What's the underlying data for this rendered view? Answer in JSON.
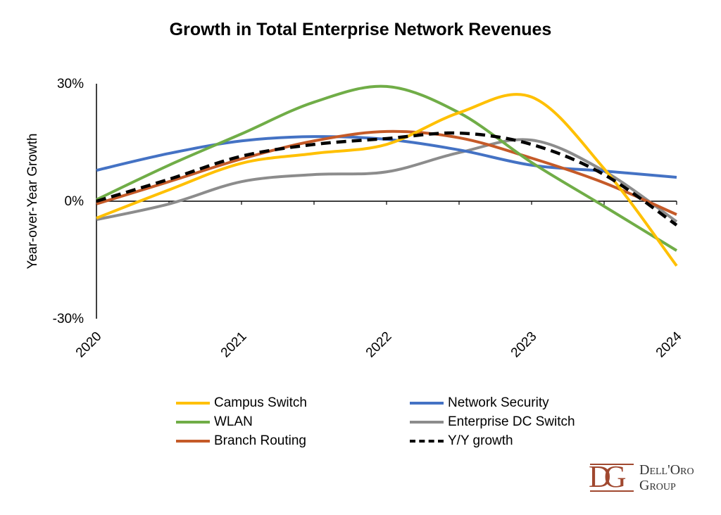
{
  "chart_data": {
    "type": "line",
    "title": "Growth in Total Enterprise Network Revenues",
    "xlabel": "",
    "ylabel": "Year-over-Year Growth",
    "x": [
      2020,
      2020.5,
      2021,
      2021.5,
      2022,
      2022.5,
      2023,
      2023.5,
      2024
    ],
    "x_tick_labels": [
      "2020",
      "2021",
      "2022",
      "2023",
      "2024"
    ],
    "y_tick_labels": [
      "30%",
      "0%",
      "-30%"
    ],
    "ylim": [
      -30,
      30
    ],
    "y_unit": "%",
    "grid": false,
    "smooth": true,
    "legend_placement": "bottom",
    "series": [
      {
        "name": "Campus Switch",
        "color": "#ffc000",
        "dash": false,
        "values": [
          -4.3,
          2.9,
          9.7,
          12.2,
          14.5,
          22.6,
          26.6,
          8.3,
          -16.5
        ]
      },
      {
        "name": "Network Security",
        "color": "#4472c4",
        "dash": false,
        "values": [
          7.9,
          12.2,
          15.4,
          16.5,
          15.8,
          13.1,
          9.2,
          7.7,
          6.1
        ]
      },
      {
        "name": "WLAN",
        "color": "#70ad47",
        "dash": false,
        "values": [
          0.4,
          9.2,
          17.2,
          25.3,
          29.3,
          22.6,
          9.9,
          -1.3,
          -12.6
        ]
      },
      {
        "name": "Enterprise DC Switch",
        "color": "#8c8c8c",
        "dash": false,
        "values": [
          -4.7,
          -0.7,
          5.0,
          6.8,
          7.5,
          12.4,
          15.6,
          7.7,
          -5.2
        ]
      },
      {
        "name": "Branch Routing",
        "color": "#c55a28",
        "dash": false,
        "values": [
          -0.7,
          5.0,
          10.8,
          15.4,
          17.8,
          16.2,
          11.0,
          4.7,
          -3.4
        ]
      },
      {
        "name": "Y/Y growth",
        "color": "#000000",
        "dash": true,
        "values": [
          0.0,
          5.6,
          11.5,
          14.5,
          16.0,
          17.4,
          14.5,
          6.8,
          -6.1
        ]
      }
    ]
  },
  "logo": {
    "mark": "DG",
    "line1": "Dell'Oro",
    "line2": "Group"
  }
}
